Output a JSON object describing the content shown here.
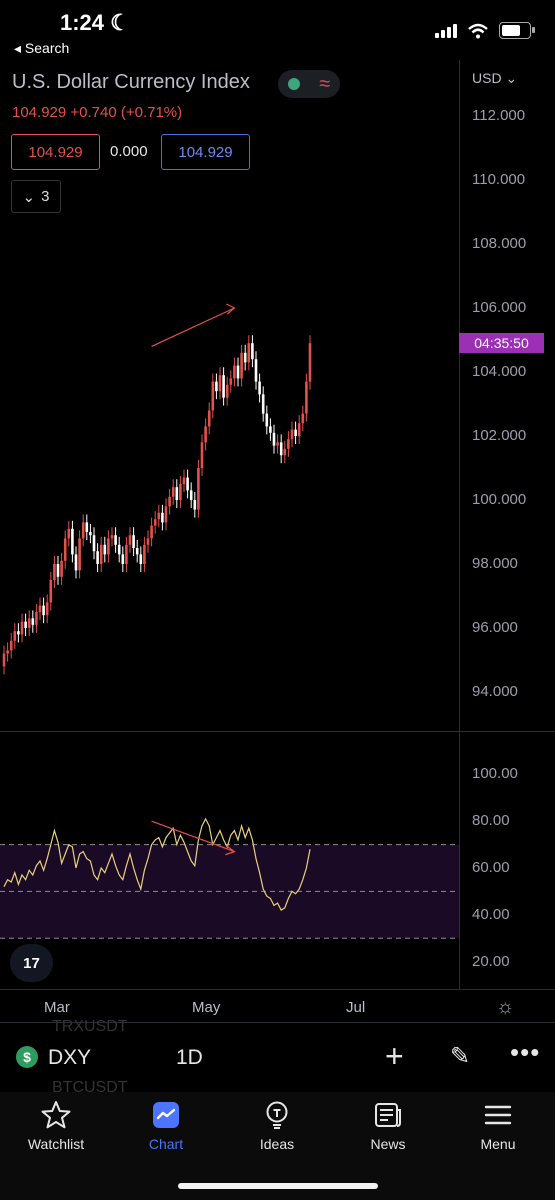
{
  "status_bar": {
    "time": "1:24",
    "back_label": "◂ Search"
  },
  "header": {
    "title": "U.S. Dollar Currency Index",
    "price_change": "104.929  +0.740  (+0.71%)",
    "bid": "104.929",
    "spread": "0.000",
    "ask": "104.929",
    "indicators_count": "3",
    "currency": "USD"
  },
  "price_axis": {
    "labels": [
      "112.000",
      "110.000",
      "108.000",
      "106.000",
      "104.000",
      "102.000",
      "100.000",
      "98.000",
      "96.000",
      "94.000"
    ],
    "countdown": "04:35:50"
  },
  "rsi_axis": {
    "labels": [
      "100.00",
      "80.00",
      "60.00",
      "40.00",
      "20.00"
    ]
  },
  "time_axis": {
    "labels": [
      "Mar",
      "May",
      "Jul"
    ]
  },
  "toolbar": {
    "symbol": "DXY",
    "interval": "1D",
    "ghost_symbols": [
      "TRXUSDT",
      "BTCUSDT"
    ]
  },
  "tabs": [
    {
      "label": "Watchlist",
      "icon": "star-icon"
    },
    {
      "label": "Chart",
      "icon": "chart-icon",
      "active": true
    },
    {
      "label": "Ideas",
      "icon": "lightbulb-icon"
    },
    {
      "label": "News",
      "icon": "newspaper-icon"
    },
    {
      "label": "Menu",
      "icon": "hamburger-menu-icon"
    }
  ],
  "colors": {
    "up": "#e4514a",
    "down": "#ffffff",
    "rsi_line": "#e7d27a",
    "rsi_band": "#1b0a26",
    "countdown_bg": "#9b30b5",
    "accent": "#4c74ff"
  },
  "chart_data": [
    {
      "type": "candlestick",
      "title": "U.S. Dollar Currency Index",
      "ylim": [
        92.5,
        113
      ],
      "x_ticks": [
        "Mar",
        "May",
        "Jul"
      ],
      "trendline": {
        "from": [
          41,
          104.8
        ],
        "to": [
          64,
          106.0
        ],
        "color": "#e4514a"
      },
      "series": [
        {
          "values": [
            95.2,
            95.3,
            95.6,
            95.9,
            95.8,
            96.2,
            96.0,
            96.3,
            96.1,
            96.5,
            96.7,
            96.4,
            96.8,
            97.5,
            98.0,
            97.6,
            98.1,
            98.8,
            99.1,
            98.3,
            97.8,
            98.8,
            99.3,
            99.0,
            98.9,
            98.4,
            98.0,
            98.6,
            98.3,
            98.8,
            98.9,
            98.6,
            98.3,
            98.0,
            98.6,
            98.9,
            98.5,
            98.3,
            98.0,
            98.6,
            98.8,
            99.2,
            99.4,
            99.6,
            99.3,
            99.8,
            100.1,
            100.4,
            100.0,
            100.5,
            100.7,
            100.3,
            100.0,
            99.7,
            101.0,
            101.8,
            102.3,
            102.8,
            103.7,
            103.4,
            103.9,
            103.2,
            103.6,
            103.8,
            104.2,
            103.8,
            104.6,
            104.3,
            104.9,
            104.4,
            103.7,
            103.3,
            102.7,
            102.3,
            102.1,
            101.7,
            101.8,
            101.4,
            101.6,
            101.9,
            102.2,
            102.0,
            102.4,
            102.7,
            103.7,
            104.9
          ]
        }
      ]
    },
    {
      "type": "line",
      "title": "RSI",
      "ylim": [
        10,
        110
      ],
      "bands": [
        70,
        50,
        30
      ],
      "trendline": {
        "from": [
          41,
          80
        ],
        "to": [
          64,
          67
        ],
        "color": "#e4514a"
      },
      "series": [
        {
          "values": [
            52,
            55,
            54,
            58,
            53,
            57,
            55,
            59,
            57,
            61,
            63,
            59,
            64,
            70,
            76,
            71,
            62,
            66,
            70,
            69,
            60,
            66,
            67,
            64,
            63,
            57,
            55,
            60,
            58,
            62,
            66,
            61,
            57,
            55,
            61,
            66,
            60,
            55,
            51,
            59,
            64,
            70,
            72,
            73,
            69,
            73,
            75,
            77,
            70,
            74,
            71,
            67,
            63,
            61,
            72,
            78,
            81,
            78,
            70,
            73,
            76,
            72,
            69,
            74,
            76,
            72,
            78,
            73,
            77,
            72,
            64,
            58,
            51,
            48,
            47,
            44,
            45,
            42,
            43,
            47,
            50,
            49,
            51,
            55,
            60,
            68
          ]
        }
      ]
    }
  ]
}
